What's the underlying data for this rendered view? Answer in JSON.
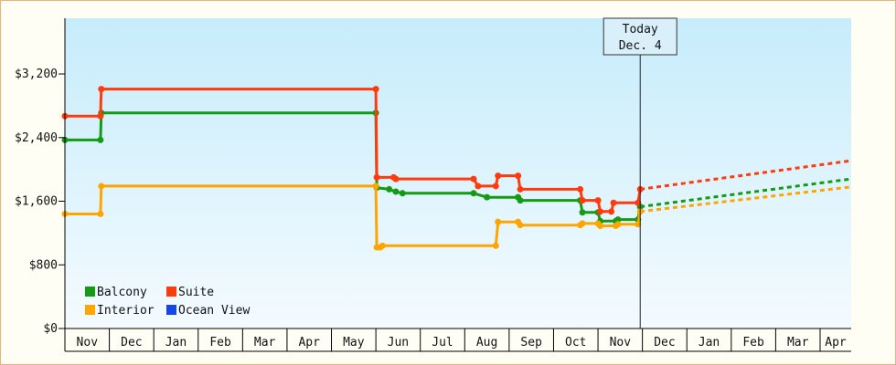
{
  "chart_data": {
    "type": "line",
    "step": true,
    "ylim": [
      0,
      3900
    ],
    "y_ticks": [
      0,
      800,
      1600,
      2400,
      3200
    ],
    "y_tick_labels": [
      "$0",
      "$800",
      "$1,600",
      "$2,400",
      "$3,200"
    ],
    "months": [
      "Nov",
      "Dec",
      "Jan",
      "Feb",
      "Mar",
      "Apr",
      "May",
      "Jun",
      "Jul",
      "Aug",
      "Sep",
      "Oct",
      "Nov",
      "Dec",
      "Jan",
      "Feb",
      "Mar",
      "Apr"
    ],
    "x_range_months": [
      0,
      17.7
    ],
    "grid": false,
    "legend_position": "bottom-left",
    "today_marker": {
      "label_line1": "Today",
      "label_line2": "Dec. 4",
      "x": 12.95
    },
    "series": [
      {
        "name": "Balcony",
        "color": "#159a15",
        "points": [
          [
            0.0,
            2370
          ],
          [
            0.8,
            2370
          ],
          [
            0.82,
            2710
          ],
          [
            7.0,
            2710
          ],
          [
            7.02,
            1770
          ],
          [
            7.3,
            1750
          ],
          [
            7.45,
            1720
          ],
          [
            7.6,
            1700
          ],
          [
            9.2,
            1700
          ],
          [
            9.5,
            1650
          ],
          [
            10.2,
            1650
          ],
          [
            10.25,
            1610
          ],
          [
            11.6,
            1610
          ],
          [
            11.65,
            1460
          ],
          [
            12.0,
            1460
          ],
          [
            12.05,
            1350
          ],
          [
            12.4,
            1350
          ],
          [
            12.45,
            1370
          ],
          [
            12.9,
            1370
          ],
          [
            12.95,
            1530
          ]
        ],
        "forecast": [
          [
            12.95,
            1530
          ],
          [
            17.7,
            1880
          ]
        ]
      },
      {
        "name": "Suite",
        "color": "#ff3a0d",
        "points": [
          [
            0.0,
            2670
          ],
          [
            0.8,
            2670
          ],
          [
            0.82,
            3010
          ],
          [
            7.0,
            3010
          ],
          [
            7.02,
            1900
          ],
          [
            7.4,
            1900
          ],
          [
            7.45,
            1880
          ],
          [
            9.2,
            1880
          ],
          [
            9.3,
            1790
          ],
          [
            9.7,
            1790
          ],
          [
            9.75,
            1920
          ],
          [
            10.2,
            1920
          ],
          [
            10.25,
            1750
          ],
          [
            11.6,
            1750
          ],
          [
            11.65,
            1610
          ],
          [
            12.0,
            1610
          ],
          [
            12.05,
            1470
          ],
          [
            12.3,
            1470
          ],
          [
            12.35,
            1580
          ],
          [
            12.9,
            1580
          ],
          [
            12.95,
            1750
          ]
        ],
        "forecast": [
          [
            12.95,
            1750
          ],
          [
            17.7,
            2110
          ]
        ]
      },
      {
        "name": "Interior",
        "color": "#ffa500",
        "points": [
          [
            0.0,
            1440
          ],
          [
            0.8,
            1440
          ],
          [
            0.82,
            1790
          ],
          [
            7.0,
            1790
          ],
          [
            7.02,
            1020
          ],
          [
            7.1,
            1020
          ],
          [
            7.15,
            1040
          ],
          [
            9.7,
            1040
          ],
          [
            9.75,
            1340
          ],
          [
            10.2,
            1340
          ],
          [
            10.25,
            1300
          ],
          [
            11.6,
            1300
          ],
          [
            11.65,
            1320
          ],
          [
            12.0,
            1320
          ],
          [
            12.05,
            1290
          ],
          [
            12.4,
            1290
          ],
          [
            12.45,
            1310
          ],
          [
            12.9,
            1310
          ],
          [
            12.95,
            1470
          ]
        ],
        "forecast": [
          [
            12.95,
            1470
          ],
          [
            17.7,
            1780
          ]
        ]
      },
      {
        "name": "Ocean View",
        "color": "#1447e6",
        "points": [],
        "forecast": []
      }
    ],
    "legend": [
      {
        "label": "Balcony",
        "color": "#159a15"
      },
      {
        "label": "Suite",
        "color": "#ff3a0d"
      },
      {
        "label": "Interior",
        "color": "#ffa500"
      },
      {
        "label": "Ocean View",
        "color": "#1447e6"
      }
    ]
  }
}
